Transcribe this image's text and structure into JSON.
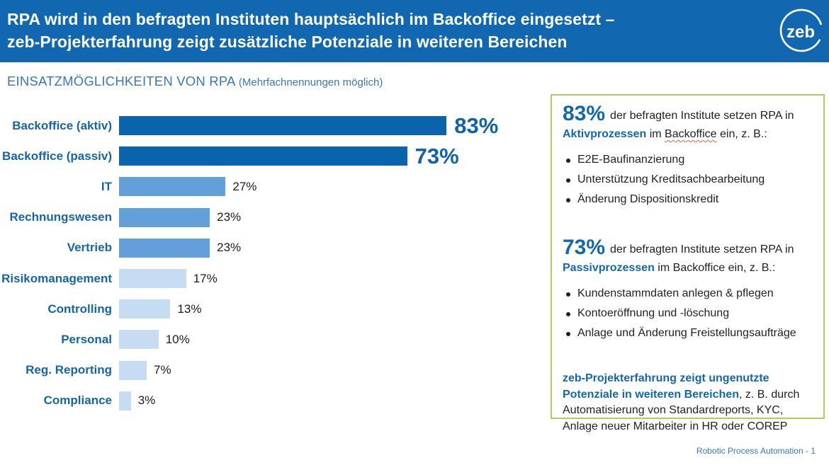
{
  "header": {
    "title_line1": "RPA wird in den befragten Instituten hauptsächlich im Backoffice eingesetzt –",
    "title_line2": "zeb-Projekterfahrung zeigt zusätzliche Potenziale in weiteren Bereichen",
    "logo_text": "zeb"
  },
  "chart": {
    "title": "EINSATZMÖGLICHKEITEN VON RPA",
    "subtitle": "(Mehrfachnennungen möglich)"
  },
  "chart_data": {
    "type": "bar",
    "orientation": "horizontal",
    "unit": "%",
    "title": "EINSATZMÖGLICHKEITEN VON RPA (Mehrfachnennungen möglich)",
    "categories": [
      "Backoffice (aktiv)",
      "Backoffice (passiv)",
      "IT",
      "Rechnungswesen",
      "Vertrieb",
      "Risikomanagement",
      "Controlling",
      "Personal",
      "Reg. Reporting",
      "Compliance"
    ],
    "values": [
      83,
      73,
      27,
      23,
      23,
      17,
      13,
      10,
      7,
      3
    ],
    "value_labels": [
      "83%",
      "73%",
      "27%",
      "23%",
      "23%",
      "17%",
      "13%",
      "10%",
      "7%",
      "3%"
    ],
    "xlim": [
      0,
      100
    ],
    "grid": false,
    "legend": false,
    "bar_colors": {
      "dark": "#0a64ac",
      "medium": "#63a0da",
      "light": "#c6dcf2"
    },
    "color_tiers": [
      "dark",
      "dark",
      "medium",
      "medium",
      "medium",
      "light",
      "light",
      "light",
      "light",
      "light"
    ],
    "emphasized_value_indices": [
      0,
      1
    ]
  },
  "panel": {
    "sections": [
      {
        "pct": "83%",
        "intro": "der befragten Institute setzen RPA in",
        "term": "Aktivprozessen",
        "after_term_pre": " im ",
        "spellcheck_word": "Backoffice",
        "after_term_post": " ein, z. B.:",
        "bullets": [
          "E2E-Baufinanzierung",
          "Unterstützung Kreditsachbearbeitung",
          "Änderung Dispositionskredit"
        ]
      },
      {
        "pct": "73%",
        "intro": "der befragten Institute setzen RPA in",
        "term": "Passivprozessen",
        "after_term_pre": " im ",
        "spellcheck_word": "Backoffice",
        "after_term_post": " ein, z. B.:",
        "bullets": [
          "Kundenstammdaten anlegen & pflegen",
          "Kontoeröffnung und -löschung",
          "Anlage und Änderung Freistellungsaufträge"
        ]
      }
    ],
    "note_bold": "zeb-Projekterfahrung zeigt ungenutzte Potenziale in weiteren Bereichen",
    "note_rest": ", z. B. durch Automatisierung von Standardreports, KYC, Anlage neuer Mitarbeiter in HR oder COREP"
  },
  "footer": {
    "text": "Robotic Process Automation -  1"
  },
  "colors": {
    "header_blue": "#1268b0",
    "bar_dark": "#0a64ac",
    "bar_medium": "#63a0da",
    "bar_light": "#c6dcf2",
    "category_label_blue": "#1465a9",
    "chart_title_blue": "#3779b2",
    "panel_border_green": "#b4ca5f",
    "emphasis_blue": "#0f63a8"
  }
}
